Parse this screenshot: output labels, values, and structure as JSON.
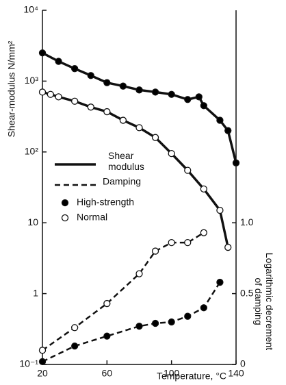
{
  "chart_data": {
    "type": "scatter-line",
    "ylabel": "Shear-modulus N/mm²",
    "y2label": "Logarithmic decrement of damping",
    "xlabel": "Temperature, °C",
    "xlim": [
      20,
      140
    ],
    "xticks": [
      20,
      60,
      100,
      140
    ],
    "ylim": [
      0.1,
      10000
    ],
    "log_y": true,
    "yticks": [
      {
        "value": 10000,
        "label": "10⁴"
      },
      {
        "value": 1000,
        "label": "10³"
      },
      {
        "value": 100,
        "label": "10²"
      },
      10,
      1,
      {
        "value": 0.1,
        "label": "10⁻¹"
      }
    ],
    "y2lim": [
      0,
      2.5
    ],
    "y2ticks": [
      0,
      0.5,
      {
        "value": 1.0,
        "label": "1.0"
      }
    ],
    "legend": {
      "styles": [
        {
          "name": "Shear modulus",
          "dashed": false
        },
        {
          "name": "Damping",
          "dashed": true
        }
      ],
      "materials": [
        {
          "name": "High-strength",
          "fill": "#000000"
        },
        {
          "name": "Normal",
          "fill": "#ffffff"
        }
      ]
    },
    "series": [
      {
        "style": 0,
        "material": 0,
        "axis": "y",
        "x": [
          20,
          30,
          40,
          50,
          60,
          70,
          80,
          90,
          100,
          110,
          117,
          120,
          130,
          135,
          140
        ],
        "values": [
          2500,
          1900,
          1500,
          1200,
          950,
          850,
          750,
          700,
          650,
          550,
          600,
          450,
          280,
          200,
          70
        ]
      },
      {
        "style": 0,
        "material": 1,
        "axis": "y",
        "x": [
          20,
          25,
          30,
          40,
          50,
          60,
          70,
          80,
          90,
          100,
          110,
          120,
          130,
          135
        ],
        "values": [
          700,
          650,
          600,
          520,
          430,
          370,
          280,
          220,
          160,
          95,
          55,
          30,
          15,
          4.5
        ]
      },
      {
        "style": 1,
        "material": 1,
        "axis": "y2",
        "x": [
          20,
          40,
          60,
          80,
          90,
          100,
          110,
          120
        ],
        "values": [
          0.1,
          0.26,
          0.43,
          0.64,
          0.8,
          0.86,
          0.86,
          0.93
        ]
      },
      {
        "style": 1,
        "material": 0,
        "axis": "y2",
        "x": [
          20,
          40,
          60,
          80,
          90,
          100,
          110,
          120,
          130
        ],
        "values": [
          0.02,
          0.13,
          0.2,
          0.27,
          0.29,
          0.3,
          0.34,
          0.4,
          0.58
        ]
      }
    ]
  }
}
